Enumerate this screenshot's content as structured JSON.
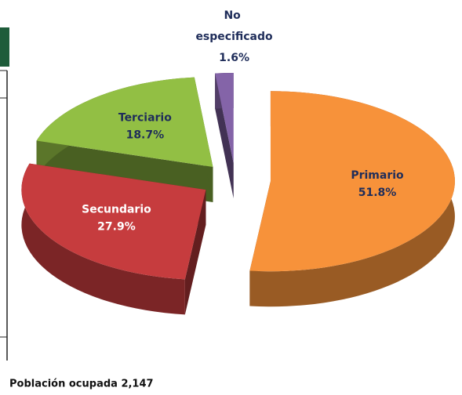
{
  "chart_data": {
    "type": "pie3d",
    "categories": [
      "Primario",
      "Secundario",
      "Terciario",
      "No especificado"
    ],
    "values": [
      51.8,
      27.9,
      18.7,
      1.6
    ],
    "value_labels": [
      "51.8%",
      "27.9%",
      "18.7%",
      "1.6%"
    ],
    "colors": [
      "#f7923a",
      "#c63c3e",
      "#92bf44",
      "#8464a8"
    ],
    "label_colors": [
      "#1f2d5a",
      "#ffffff",
      "#1f2d5a",
      "#1f2d5a"
    ],
    "caption": "Población ocupada 2,147"
  }
}
